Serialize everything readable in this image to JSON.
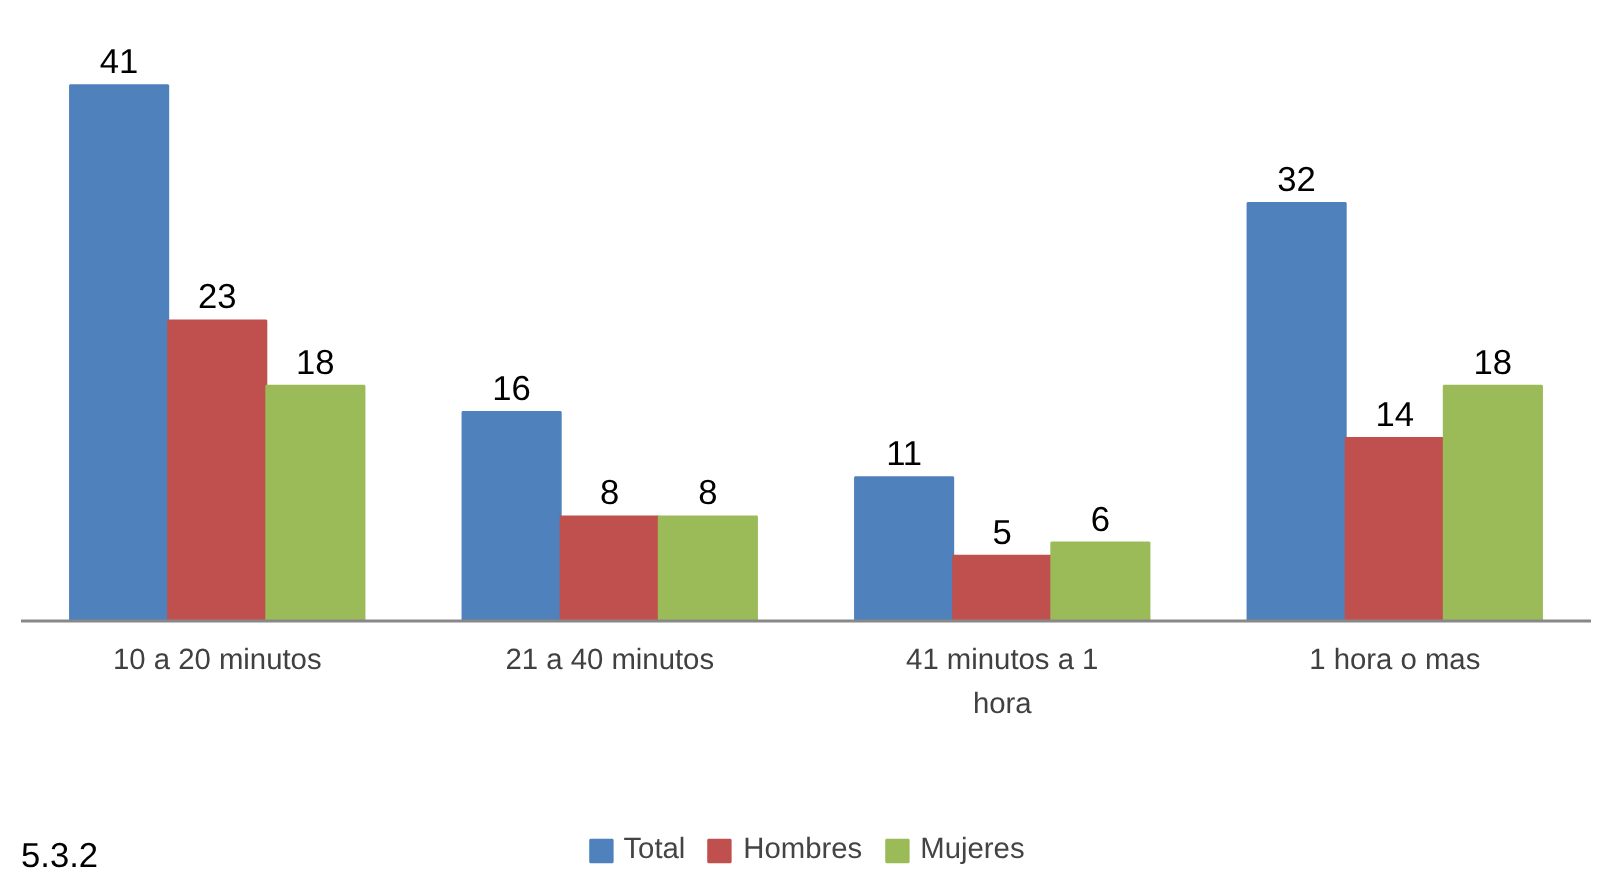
{
  "chart_data": {
    "type": "bar",
    "categories": [
      "10 a 20 minutos",
      "21 a 40 minutos",
      "41 minutos a 1 hora",
      "1 hora o mas"
    ],
    "series": [
      {
        "name": "Total",
        "color": "#4f81bd",
        "values": [
          41,
          16,
          11,
          32
        ]
      },
      {
        "name": "Hombres",
        "color": "#c0504d",
        "values": [
          23,
          8,
          5,
          14
        ]
      },
      {
        "name": "Mujeres",
        "color": "#9bbb59",
        "values": [
          18,
          8,
          6,
          18
        ]
      }
    ],
    "data_labels": true,
    "grid": false,
    "legend": "bottom",
    "annotations": [
      "5.3.2"
    ]
  }
}
